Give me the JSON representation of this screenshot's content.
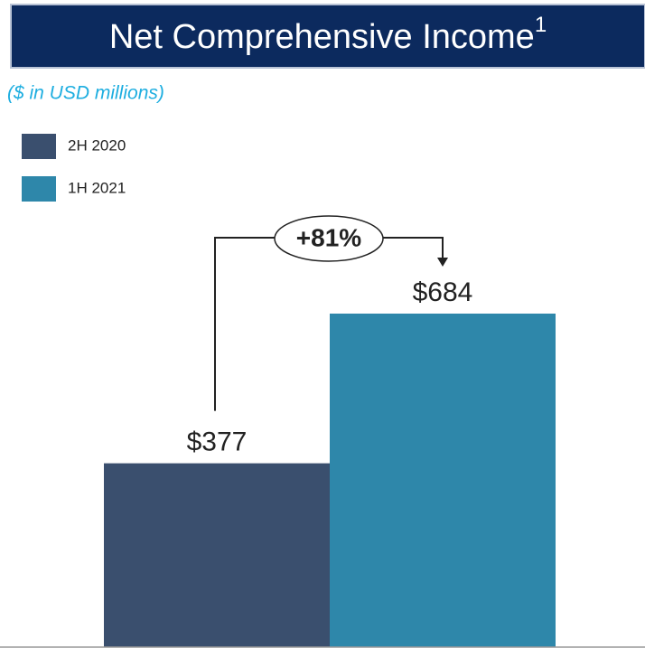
{
  "chart_data": {
    "type": "bar",
    "title": "Net Comprehensive Income",
    "title_superscript": "1",
    "subtitle": "($ in USD millions)",
    "categories": [
      null
    ],
    "series": [
      {
        "name": "2H 2020",
        "color": "#3a4f6e",
        "values": [
          377
        ],
        "value_labels": [
          "$377"
        ]
      },
      {
        "name": "1H 2021",
        "color": "#2e87aa",
        "values": [
          684
        ],
        "value_labels": [
          "$684"
        ]
      }
    ],
    "annotation": "+81%"
  }
}
